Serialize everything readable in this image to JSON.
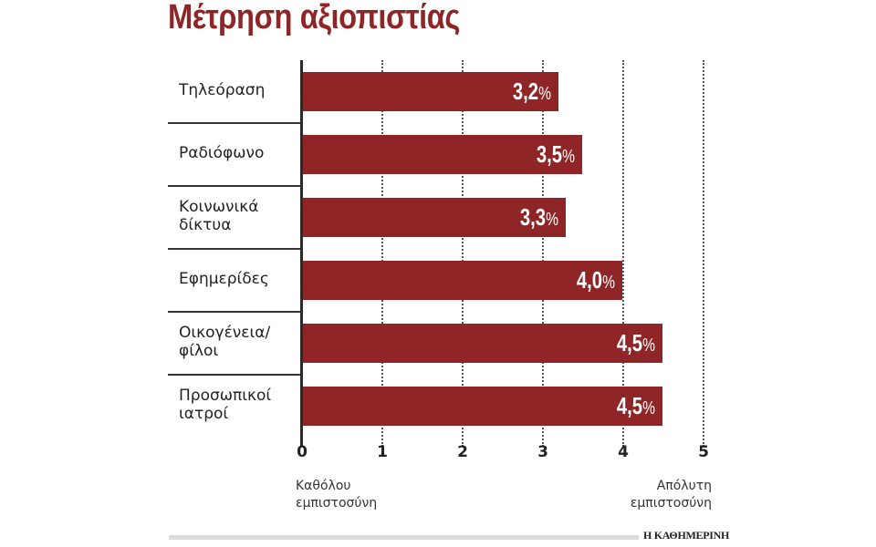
{
  "title": "Μέτρηση αξιοπιστίας",
  "chart_data": {
    "type": "bar",
    "orientation": "horizontal",
    "title": "Μέτρηση αξιοπιστίας",
    "categories": [
      "Τηλεόραση",
      "Ραδιόφωνο",
      "Κοινωνικά δίκτυα",
      "Εφημερίδες",
      "Οικογένεια/ φίλοι",
      "Προσωπικοί ιατροί"
    ],
    "values": [
      3.2,
      3.5,
      3.3,
      4.0,
      4.5,
      4.5
    ],
    "value_labels": [
      "3,2",
      "3,5",
      "3,3",
      "4,0",
      "4,5",
      "4,5"
    ],
    "value_suffix": "%",
    "xlim": [
      0,
      5
    ],
    "xticks": [
      "0",
      "1",
      "2",
      "3",
      "4",
      "5"
    ],
    "x_min_label": "Καθόλου εμπιστοσύνη",
    "x_max_label": "Απόλυτη εμπιστοσύνη",
    "grid": "vertical dotted",
    "bar_color": "#8f2526",
    "legend": null
  },
  "rows": [
    {
      "label": "Τηλεόραση",
      "value": "3,2",
      "num": 3.2
    },
    {
      "label": "Ραδιόφωνο",
      "value": "3,5",
      "num": 3.5
    },
    {
      "label": "Κοινωνικά\nδίκτυα",
      "value": "3,3",
      "num": 3.3
    },
    {
      "label": "Εφημερίδες",
      "value": "4,0",
      "num": 4.0
    },
    {
      "label": "Οικογένεια/\nφίλοι",
      "value": "4,5",
      "num": 4.5
    },
    {
      "label": "Προσωπικοί\nιατροί",
      "value": "4,5",
      "num": 4.5
    }
  ],
  "pct": "%",
  "axis": {
    "ticks": [
      "0",
      "1",
      "2",
      "3",
      "4",
      "5"
    ],
    "min_label": "Καθόλου\nεμπιστοσύνη",
    "max_label": "Απόλυτη\nεμπιστοσύνη"
  },
  "footer": {
    "brand": "Η ΚΑΘΗΜΕΡΙΝΗ"
  },
  "colors": {
    "accent": "#8f2526",
    "axis": "#2b2b2b",
    "footer_bar": "#dcdcdc"
  }
}
